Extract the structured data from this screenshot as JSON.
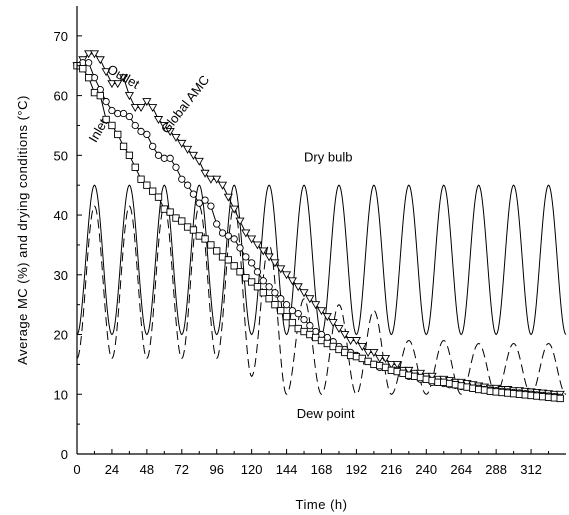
{
  "chart_data": {
    "type": "line",
    "xlabel": "Time (h)",
    "ylabel": "Average MC (%) and drying conditions (°C)",
    "xlim": [
      0,
      336
    ],
    "ylim": [
      0,
      75
    ],
    "xticks": [
      0,
      24,
      48,
      72,
      96,
      120,
      144,
      168,
      192,
      216,
      240,
      264,
      288,
      312
    ],
    "yticks": [
      0,
      10,
      20,
      30,
      40,
      50,
      60,
      70
    ],
    "grid": false,
    "legend": "none",
    "annotations": [
      {
        "text": "Outlet",
        "x": 20,
        "y": 64,
        "rotate": 30
      },
      {
        "text": "Global AMC",
        "x": 62,
        "y": 53.5,
        "rotate": -52
      },
      {
        "text": "Inlet",
        "x": 13,
        "y": 52,
        "rotate": -60
      },
      {
        "text": "Dry bulb",
        "x": 156,
        "y": 49,
        "rotate": 0
      },
      {
        "text": "Dew point",
        "x": 151,
        "y": 6,
        "rotate": 0
      }
    ],
    "series": [
      {
        "name": "Outlet",
        "marker": "triangle-down",
        "x": [
          0,
          4,
          8,
          12,
          16,
          20,
          24,
          28,
          32,
          36,
          40,
          44,
          48,
          52,
          56,
          60,
          64,
          68,
          72,
          76,
          80,
          84,
          88,
          92,
          96,
          100,
          104,
          108,
          112,
          116,
          120,
          124,
          128,
          132,
          136,
          140,
          144,
          148,
          152,
          156,
          160,
          164,
          168,
          172,
          176,
          180,
          184,
          188,
          192,
          196,
          200,
          204,
          208,
          212,
          216,
          220,
          224,
          228,
          232,
          236,
          240,
          244,
          248,
          252,
          256,
          260,
          264,
          268,
          272,
          276,
          280,
          284,
          288,
          292,
          296,
          300,
          304,
          308,
          312,
          316,
          320,
          324,
          328,
          332
        ],
        "y": [
          65,
          66,
          67,
          67,
          66,
          64,
          62,
          62,
          63,
          60,
          58,
          58,
          59,
          58,
          56,
          55,
          54,
          53,
          52,
          51,
          50,
          49,
          47,
          46,
          46,
          45,
          43,
          41,
          39,
          37,
          36,
          35,
          34,
          33,
          32,
          31,
          30,
          29,
          28,
          27,
          26,
          25,
          24,
          23,
          22,
          21,
          20,
          19,
          19,
          18,
          17,
          17,
          16,
          16,
          15,
          15,
          14,
          14,
          13.5,
          13.5,
          13,
          13,
          12.5,
          12.5,
          12.3,
          12,
          12,
          11.8,
          11.6,
          11.4,
          11.2,
          11,
          11,
          10.8,
          10.8,
          10.6,
          10.6,
          10.5,
          10.4,
          10.3,
          10.2,
          10.1,
          10,
          10
        ]
      },
      {
        "name": "Global AMC",
        "marker": "circle",
        "x": [
          0,
          4,
          8,
          12,
          16,
          20,
          24,
          28,
          32,
          36,
          40,
          44,
          48,
          52,
          56,
          60,
          64,
          68,
          72,
          76,
          80,
          84,
          88,
          92,
          96,
          100,
          104,
          108,
          112,
          116,
          120,
          124,
          128,
          132,
          136,
          140,
          144,
          148,
          152,
          156,
          160,
          164,
          168,
          172,
          176,
          180,
          184,
          188,
          192,
          196,
          200,
          204,
          208,
          212,
          216,
          220,
          224,
          228,
          232,
          236,
          240,
          244,
          248,
          252,
          256,
          260,
          264,
          268,
          272,
          276,
          280,
          284,
          288,
          292,
          296,
          300,
          304,
          308,
          312,
          316,
          320,
          324,
          328,
          332
        ],
        "y": [
          65,
          65.5,
          65.5,
          63,
          61,
          59,
          57.5,
          57,
          57,
          56.5,
          55,
          54,
          53.5,
          51.5,
          50,
          49.5,
          49.5,
          48,
          46,
          45,
          43.5,
          42,
          42.5,
          41.5,
          38.5,
          37,
          36.5,
          36,
          34.5,
          33,
          32,
          30.5,
          29,
          28,
          27,
          26,
          25,
          24,
          23.5,
          22.5,
          21.5,
          20.5,
          20,
          19.5,
          18.8,
          18,
          17.5,
          17,
          16.5,
          16,
          15.5,
          15,
          14.5,
          14.5,
          14,
          14,
          13.5,
          13,
          13,
          12.5,
          12.5,
          12,
          12,
          11.8,
          11.6,
          11.5,
          11.3,
          11.2,
          11,
          11,
          10.8,
          10.7,
          10.6,
          10.5,
          10.4,
          10.3,
          10.2,
          10.1,
          10,
          9.9,
          9.8,
          9.7,
          9.6,
          9.5
        ]
      },
      {
        "name": "Inlet",
        "marker": "square",
        "x": [
          0,
          4,
          8,
          12,
          16,
          20,
          24,
          28,
          32,
          36,
          40,
          44,
          48,
          52,
          56,
          60,
          64,
          68,
          72,
          76,
          80,
          84,
          88,
          92,
          96,
          100,
          104,
          108,
          112,
          116,
          120,
          124,
          128,
          132,
          136,
          140,
          144,
          148,
          152,
          156,
          160,
          164,
          168,
          172,
          176,
          180,
          184,
          188,
          192,
          196,
          200,
          204,
          208,
          212,
          216,
          220,
          224,
          228,
          232,
          236,
          240,
          244,
          248,
          252,
          256,
          260,
          264,
          268,
          272,
          276,
          280,
          284,
          288,
          292,
          296,
          300,
          304,
          308,
          312,
          316,
          320,
          324,
          328,
          332
        ],
        "y": [
          65,
          64.5,
          63,
          60.5,
          60,
          56,
          55,
          53.5,
          51.5,
          50,
          48,
          46,
          45,
          44,
          43,
          41,
          40.5,
          39.5,
          39,
          38,
          37.5,
          36.5,
          36,
          35,
          34,
          33,
          32.5,
          31.5,
          30.5,
          29.5,
          28.8,
          28,
          27,
          26,
          25,
          24,
          23,
          22,
          21,
          20.5,
          20,
          19.5,
          19,
          18.5,
          18,
          17.5,
          17,
          16.5,
          16.3,
          16,
          15.5,
          15,
          14.8,
          14.5,
          14,
          13.8,
          13.5,
          13.2,
          13,
          12.8,
          12.5,
          12.3,
          12,
          12,
          11.8,
          11.6,
          11.4,
          11.2,
          11,
          10.8,
          10.7,
          10.5,
          10.4,
          10.3,
          10.2,
          10.1,
          10,
          9.9,
          9.8,
          9.7,
          9.6,
          9.5,
          9.4,
          9.3
        ]
      },
      {
        "name": "Dry bulb",
        "style": "solid",
        "model": "sinusoid",
        "period_h": 24,
        "min": 20,
        "max": 45,
        "peak_at_h": 12
      },
      {
        "name": "Dew point",
        "style": "dashed",
        "x": [
          0,
          12,
          24,
          36,
          48,
          60,
          72,
          84,
          96,
          108,
          120,
          132,
          144,
          156,
          168,
          180,
          192,
          204,
          216,
          228,
          240,
          252,
          264,
          276,
          288,
          300,
          312,
          324,
          336
        ],
        "y": [
          16,
          41.5,
          16,
          41.5,
          16,
          41.5,
          16,
          41.5,
          16,
          41.5,
          13,
          35,
          10,
          26,
          10,
          25,
          10,
          24,
          10,
          19,
          10,
          19,
          10,
          18.5,
          10,
          18.5,
          10,
          18.5,
          10
        ]
      }
    ]
  }
}
